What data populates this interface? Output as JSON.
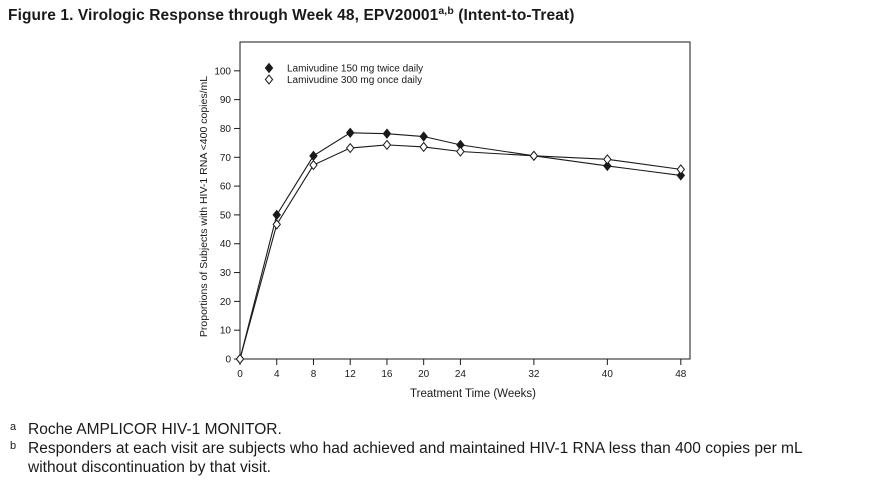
{
  "figure": {
    "title_main": "Figure 1. Virologic Response through Week 48, EPV20001",
    "title_sup": "a,b",
    "title_tail": " (Intent-to-Treat)"
  },
  "chart_data": {
    "type": "line",
    "xlabel": "Treatment Time (Weeks)",
    "ylabel": "Proportions of Subjects with HIV-1 RNA <400 copies/mL",
    "x": [
      0,
      4,
      8,
      12,
      16,
      20,
      24,
      32,
      40,
      48
    ],
    "x_ticks": [
      "0",
      "4",
      "8",
      "12",
      "16",
      "20",
      "24",
      "32",
      "40",
      "48"
    ],
    "y_ticks": [
      "0",
      "10",
      "20",
      "30",
      "40",
      "50",
      "60",
      "70",
      "80",
      "90",
      "100"
    ],
    "xlim": [
      0,
      49
    ],
    "ylim": [
      0,
      110
    ],
    "grid": false,
    "legend_position": "top-left",
    "series": [
      {
        "name": "Lamivudine 150 mg twice daily",
        "marker": "filled-diamond",
        "color": "#1a1a1a",
        "values": [
          0,
          50,
          70.5,
          78.5,
          78.2,
          77.2,
          74.3,
          70.5,
          67,
          63.7
        ]
      },
      {
        "name": "Lamivudine 300 mg once daily",
        "marker": "open-diamond",
        "color": "#1a1a1a",
        "values": [
          0,
          46.7,
          67.3,
          73.2,
          74.3,
          73.6,
          72,
          70.5,
          69.3,
          65.8
        ]
      }
    ]
  },
  "footnotes": [
    {
      "mark": "a",
      "text": "Roche AMPLICOR HIV-1 MONITOR."
    },
    {
      "mark": "b",
      "text": "Responders at each visit are subjects who had achieved and maintained HIV-1 RNA less than 400 copies per mL",
      "text2": "without discontinuation by that visit."
    }
  ]
}
